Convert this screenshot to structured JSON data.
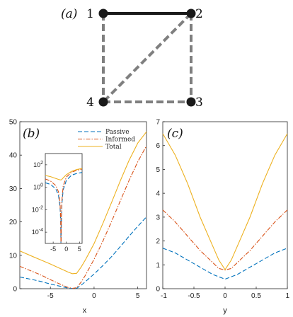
{
  "graph": {
    "panel_label": "(a)",
    "nodes": [
      {
        "id": "1",
        "label": "1"
      },
      {
        "id": "2",
        "label": "2"
      },
      {
        "id": "3",
        "label": "3"
      },
      {
        "id": "4",
        "label": "4"
      }
    ],
    "edges": [
      {
        "from": "1",
        "to": "2",
        "style": "solid"
      },
      {
        "from": "1",
        "to": "4",
        "style": "dashed"
      },
      {
        "from": "2",
        "to": "4",
        "style": "dashed"
      },
      {
        "from": "2",
        "to": "3",
        "style": "dashed"
      },
      {
        "from": "4",
        "to": "3",
        "style": "dashed"
      }
    ],
    "colors": {
      "node": "#1a1a1a",
      "solid_edge": "#1a1a1a",
      "dashed_edge": "#7f7f7f"
    }
  },
  "legend": {
    "entries": [
      {
        "name": "Passive",
        "color": "#0072BD",
        "dash": "dashed"
      },
      {
        "name": "Informed",
        "color": "#D95319",
        "dash": "dashdot"
      },
      {
        "name": "Total",
        "color": "#EDB120",
        "dash": "solid"
      }
    ]
  },
  "chart_data": [
    {
      "id": "b",
      "panel_label": "(b)",
      "type": "line",
      "xlabel": "x",
      "ylabel": "",
      "xlim": [
        -8.5,
        6
      ],
      "ylim": [
        0,
        50
      ],
      "xticks": [
        "-5",
        "0",
        "5"
      ],
      "xtick_values": [
        -5,
        0,
        5
      ],
      "yticks": [
        "0",
        "10",
        "20",
        "30",
        "40",
        "50"
      ],
      "ytick_values": [
        0,
        10,
        20,
        30,
        40,
        50
      ],
      "grid": false,
      "legend_position": "top-right",
      "x": [
        -8.5,
        -7,
        -6,
        -5,
        -4,
        -3,
        -2.5,
        -2,
        -1.5,
        -1,
        0,
        1,
        2,
        3,
        4,
        5,
        6
      ],
      "series": [
        {
          "name": "Passive",
          "values": [
            3.5,
            2.7,
            2.1,
            1.4,
            0.8,
            0.2,
            0.05,
            0.1,
            1.0,
            2.1,
            4.4,
            6.9,
            9.6,
            12.6,
            15.7,
            18.7,
            21.5
          ]
        },
        {
          "name": "Informed",
          "values": [
            6.7,
            5.1,
            4.0,
            2.7,
            1.5,
            0.4,
            0.1,
            0.3,
            1.9,
            4.0,
            8.8,
            14.2,
            20.1,
            26.3,
            32.4,
            38.0,
            42.8
          ]
        },
        {
          "name": "Total",
          "values": [
            11.3,
            9.6,
            8.5,
            7.4,
            6.2,
            5.0,
            4.5,
            4.6,
            6.4,
            8.6,
            13.5,
            19.5,
            25.8,
            32.3,
            38.4,
            43.6,
            47.0
          ]
        }
      ],
      "inset": {
        "type": "line",
        "log_y": true,
        "xlim": [
          -8,
          6
        ],
        "ylim": [
          1e-05,
          1000
        ],
        "xticks": [
          "-5",
          "0",
          "5"
        ],
        "xtick_values": [
          -5,
          0,
          5
        ],
        "yticks": [
          "10-4",
          "10-2",
          "100",
          "102"
        ],
        "ytick_exponents": [
          -4,
          -2,
          0,
          2
        ],
        "x": [
          -8,
          -6,
          -4,
          -3,
          -2.4,
          -2.15,
          -2.05,
          -1.98,
          -1.9,
          -1.7,
          -1.2,
          0,
          2,
          4,
          6
        ],
        "series": [
          {
            "name": "Passive",
            "values": [
              2.5,
              1.8,
              0.7,
              0.2,
              0.02,
              0.001,
              1e-05,
              1e-05,
              0.0005,
              0.03,
              0.6,
              4.0,
              12.0,
              17.0,
              21.0
            ]
          },
          {
            "name": "Informed",
            "values": [
              5.5,
              3.6,
              1.4,
              0.4,
              0.04,
              0.002,
              1e-05,
              1e-05,
              0.001,
              0.06,
              1.3,
              8.0,
              22.0,
              32.0,
              42.0
            ]
          },
          {
            "name": "Total",
            "values": [
              11.0,
              8.8,
              6.0,
              5.0,
              4.6,
              4.5,
              4.5,
              4.5,
              4.6,
              5.0,
              6.8,
              13.0,
              26.0,
              38.0,
              47.0
            ]
          }
        ]
      }
    },
    {
      "id": "c",
      "panel_label": "(c)",
      "type": "line",
      "xlabel": "y",
      "ylabel": "",
      "xlim": [
        -1,
        1
      ],
      "ylim": [
        0,
        7
      ],
      "xticks": [
        "-1",
        "-0.5",
        "0",
        "0.5",
        "1"
      ],
      "xtick_values": [
        -1,
        -0.5,
        0,
        0.5,
        1
      ],
      "yticks": [
        "0",
        "1",
        "2",
        "3",
        "4",
        "5",
        "6",
        "7"
      ],
      "ytick_values": [
        0,
        1,
        2,
        3,
        4,
        5,
        6,
        7
      ],
      "grid": false,
      "x": [
        -1,
        -0.8,
        -0.6,
        -0.4,
        -0.2,
        -0.1,
        0,
        0.1,
        0.2,
        0.4,
        0.6,
        0.8,
        1
      ],
      "series": [
        {
          "name": "Passive",
          "values": [
            1.7,
            1.5,
            1.2,
            0.9,
            0.6,
            0.5,
            0.4,
            0.5,
            0.6,
            0.9,
            1.2,
            1.5,
            1.7
          ]
        },
        {
          "name": "Informed",
          "values": [
            3.3,
            2.8,
            2.2,
            1.6,
            1.1,
            0.85,
            0.78,
            0.85,
            1.1,
            1.6,
            2.2,
            2.8,
            3.3
          ]
        },
        {
          "name": "Total",
          "values": [
            6.5,
            5.6,
            4.4,
            3.0,
            1.8,
            1.2,
            0.8,
            1.2,
            1.8,
            3.0,
            4.4,
            5.6,
            6.5
          ]
        }
      ]
    }
  ]
}
